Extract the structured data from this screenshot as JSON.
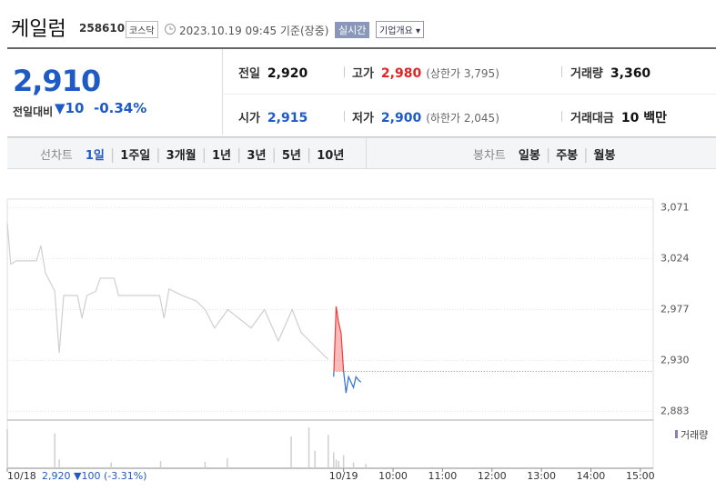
{
  "header": {
    "name": "케일럼",
    "code": "258610",
    "market": "코스닥",
    "timestamp": "2023.10.19 09:45 기준(장중)",
    "realtime": "실시간",
    "overview": "기업개요"
  },
  "quote": {
    "price": "2,910",
    "change_label": "전일대비",
    "change": "10",
    "change_pct": "-0.34%"
  },
  "stats": [
    {
      "label": "전일",
      "value": "2,920"
    },
    {
      "label": "고가",
      "value": "2,980",
      "note": "(상한가 3,795)"
    },
    {
      "label": "거래량",
      "value": "3,360"
    },
    {
      "label": "시가",
      "value": "2,915"
    },
    {
      "label": "저가",
      "value": "2,900",
      "note": "(하한가 2,045)"
    },
    {
      "label": "거래대금",
      "value": "10 백만"
    }
  ],
  "tabs": {
    "line_label": "선차트",
    "line": [
      "1일",
      "1주일",
      "3개월",
      "1년",
      "3년",
      "5년",
      "10년"
    ],
    "candle_label": "봉차트",
    "candle": [
      "일봉",
      "주봉",
      "월봉"
    ]
  },
  "chart": {
    "type": "line",
    "xlim": [
      0,
      130
    ],
    "ylim": [
      2875,
      3079
    ],
    "yticks": [
      {
        "value": 3071,
        "label": "3,071"
      },
      {
        "value": 3024,
        "label": "3,024"
      },
      {
        "value": 2977,
        "label": "2,977"
      },
      {
        "value": 2930,
        "label": "2,930"
      },
      {
        "value": 2883,
        "label": "2,883"
      }
    ],
    "xticks": [
      {
        "value": 0,
        "label": "10/18"
      },
      {
        "value": 68,
        "label": "10/19"
      },
      {
        "value": 78,
        "label": "10:00"
      },
      {
        "value": 88,
        "label": "11:00"
      },
      {
        "value": 98,
        "label": "12:00"
      },
      {
        "value": 108,
        "label": "13:00"
      },
      {
        "value": 118,
        "label": "14:00"
      },
      {
        "value": 128,
        "label": "15:00"
      }
    ],
    "reference": 2920,
    "up_color": "#f03c3c",
    "series": [
      {
        "color": "#cfcfcf",
        "x": [
          0,
          0.7,
          1.8,
          5.9,
          6.8,
          7.7,
          9.6,
          10.5,
          11.4,
          14.2,
          15.1,
          16.1,
          17.9,
          18.8,
          21.6,
          22.5,
          30.8,
          31.7,
          32.7,
          35.4,
          38.2,
          40,
          41.9,
          44.6,
          49.3,
          52,
          54.8,
          57.6,
          59.4,
          62.2,
          64.9
        ],
        "values": [
          3057,
          3019,
          3022,
          3022,
          3036,
          3011,
          2994,
          2937,
          2990,
          2990,
          2969,
          2990,
          2994,
          3006,
          3006,
          2990,
          2990,
          2969,
          2996,
          2990,
          2985,
          2977,
          2960,
          2977,
          2960,
          2977,
          2948,
          2977,
          2956,
          2943,
          2931
        ]
      },
      {
        "color": "#2f6fd6",
        "x": [
          66,
          66.5,
          67,
          67.5,
          68,
          68.5,
          69,
          69.5,
          70,
          70.5,
          71,
          71.5
        ],
        "values": [
          2915,
          2980,
          2965,
          2955,
          2920,
          2900,
          2915,
          2910,
          2905,
          2915,
          2912,
          2910
        ]
      }
    ],
    "volume": {
      "label": "거래량",
      "color": "#cfcfcf",
      "ylim": [
        0,
        300
      ],
      "x": [
        0,
        9.6,
        10.5,
        21,
        31,
        40,
        44.5,
        57.4,
        61,
        62.2,
        64.9,
        66,
        66.5,
        67,
        68,
        70,
        72.5
      ],
      "values": [
        270,
        240,
        60,
        40,
        50,
        45,
        70,
        220,
        280,
        120,
        230,
        110,
        60,
        50,
        90,
        40,
        30
      ]
    },
    "summary": {
      "close": "2,920",
      "change": "100",
      "change_pct": "(-3.31%)"
    }
  }
}
